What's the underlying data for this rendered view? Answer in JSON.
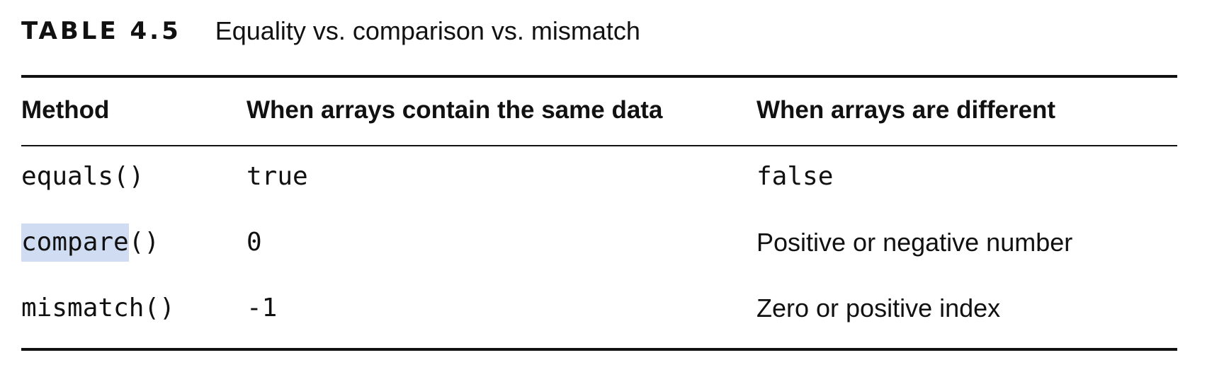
{
  "caption": {
    "label": "TABLE 4.5",
    "title": "Equality vs. comparison vs. mismatch"
  },
  "table": {
    "headers": [
      "Method",
      "When arrays contain the same data",
      "When arrays are different"
    ],
    "rows": [
      {
        "method": "equals()",
        "same": "true",
        "different": "false"
      },
      {
        "method_highlighted": "compare",
        "method_rest": "()",
        "same": "0",
        "different": "Positive or negative number"
      },
      {
        "method": "mismatch()",
        "same": "-1",
        "different": "Zero or positive index"
      }
    ]
  },
  "colors": {
    "text": "#111111",
    "rule": "#111111",
    "highlight": "#cfdcf1"
  }
}
